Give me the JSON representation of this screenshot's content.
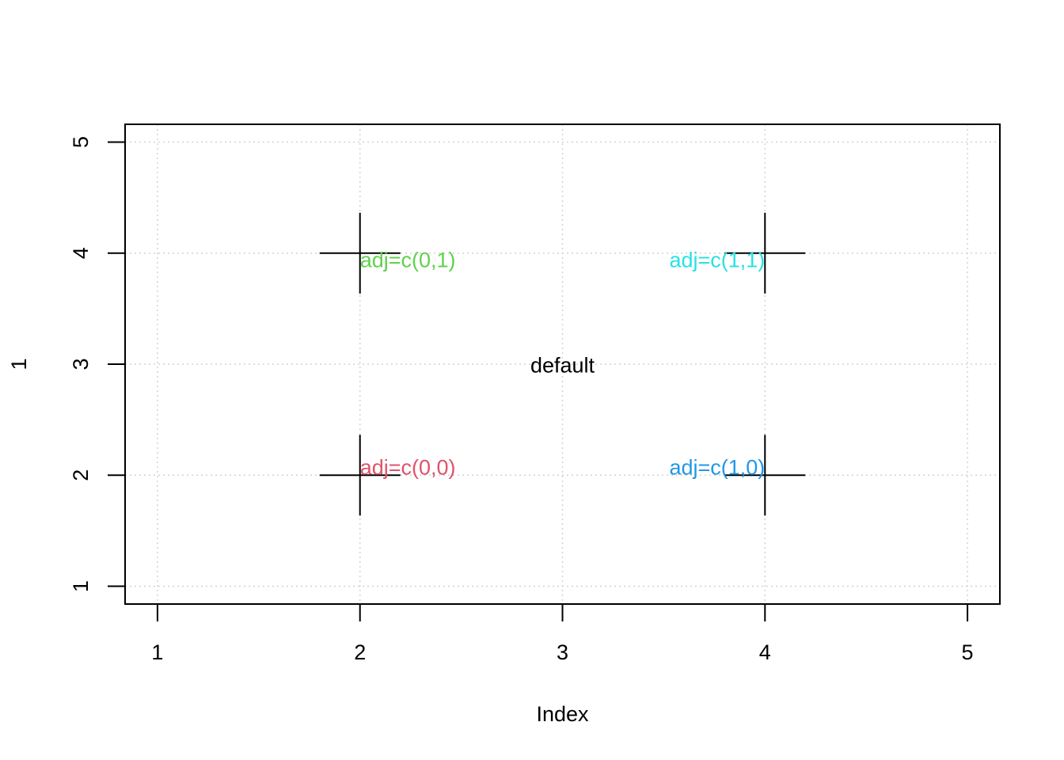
{
  "chart_data": {
    "type": "scatter",
    "title": "",
    "xlabel": "Index",
    "ylabel": "1",
    "xlim": [
      0.84,
      5.16
    ],
    "ylim": [
      0.84,
      5.16
    ],
    "x_ticks": [
      1,
      2,
      3,
      4,
      5
    ],
    "y_ticks": [
      1,
      2,
      3,
      4,
      5
    ],
    "x_tick_labels": [
      "1",
      "2",
      "3",
      "4",
      "5"
    ],
    "y_tick_labels": [
      "1",
      "2",
      "3",
      "4",
      "5"
    ],
    "grid": true,
    "grid_style": "dotted",
    "points": [
      {
        "x": 2,
        "y": 2,
        "marker": "plus"
      },
      {
        "x": 2,
        "y": 4,
        "marker": "plus"
      },
      {
        "x": 4,
        "y": 2,
        "marker": "plus"
      },
      {
        "x": 4,
        "y": 4,
        "marker": "plus"
      }
    ],
    "annotations": [
      {
        "text": "default",
        "x": 3,
        "y": 3,
        "adj": [
          0.5,
          0.5
        ],
        "color": "#000000"
      },
      {
        "text": "adj=c(0,0)",
        "x": 2,
        "y": 2,
        "adj": [
          0,
          0
        ],
        "color": "#DF536B"
      },
      {
        "text": "adj=c(0,1)",
        "x": 2,
        "y": 4,
        "adj": [
          0,
          1
        ],
        "color": "#61D04F"
      },
      {
        "text": "adj=c(1,0)",
        "x": 4,
        "y": 2,
        "adj": [
          1,
          0
        ],
        "color": "#2297E6"
      },
      {
        "text": "adj=c(1,1)",
        "x": 4,
        "y": 4,
        "adj": [
          1,
          1
        ],
        "color": "#28E2E5"
      }
    ]
  },
  "colors": {
    "axis": "#000000",
    "grid": "#D3D3D3",
    "background": "#FFFFFF"
  }
}
